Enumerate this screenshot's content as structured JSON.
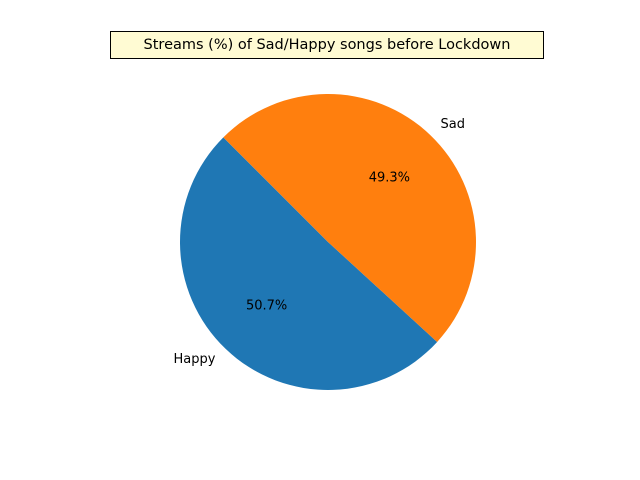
{
  "chart_data": {
    "type": "pie",
    "title": "Streams (%) of Sad/Happy songs before Lockdown",
    "categories": [
      "Happy",
      "Sad"
    ],
    "values": [
      50.7,
      49.3
    ],
    "value_labels": [
      "50.7%",
      "49.3%"
    ],
    "colors": [
      "#1f77b4",
      "#ff7f0e"
    ],
    "start_angle_deg": 135,
    "direction": "counterclockwise"
  }
}
